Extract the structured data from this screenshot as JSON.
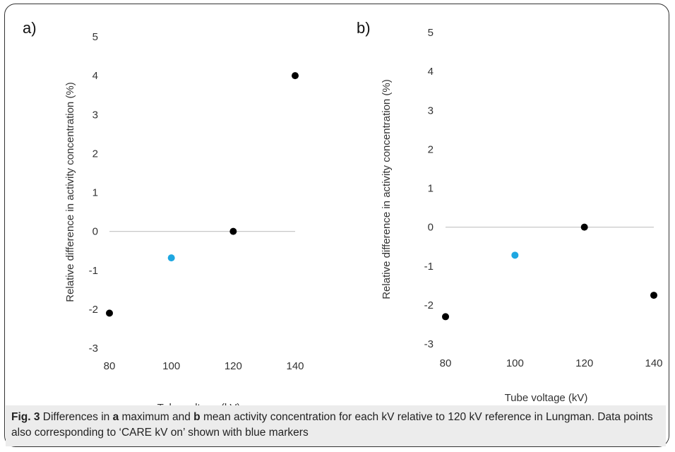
{
  "chart_data": [
    {
      "type": "scatter",
      "panel_label": "a)",
      "xlabel": "Tube voltage (kV)",
      "ylabel": "Relative difference in activity concentration (%)",
      "xlim": [
        80,
        140
      ],
      "ylim": [
        -3,
        5
      ],
      "xticks": [
        "80",
        "100",
        "120",
        "140"
      ],
      "yticks": [
        "-3",
        "-2",
        "-1",
        "0",
        "1",
        "2",
        "3",
        "4",
        "5"
      ],
      "grid": false,
      "points": [
        {
          "x": 80,
          "y": -2.1,
          "color": "#000000"
        },
        {
          "x": 100,
          "y": -0.68,
          "color": "#1ea7e1"
        },
        {
          "x": 120,
          "y": 0.0,
          "color": "#000000"
        },
        {
          "x": 140,
          "y": 4.0,
          "color": "#000000"
        }
      ]
    },
    {
      "type": "scatter",
      "panel_label": "b)",
      "xlabel": "Tube voltage (kV)",
      "ylabel": "Relative difference in activity concentration (%)",
      "xlim": [
        80,
        140
      ],
      "ylim": [
        -3,
        5
      ],
      "xticks": [
        "80",
        "100",
        "120",
        "140"
      ],
      "yticks": [
        "-3",
        "-2",
        "-1",
        "0",
        "1",
        "2",
        "3",
        "4",
        "5"
      ],
      "grid": false,
      "points": [
        {
          "x": 80,
          "y": -2.3,
          "color": "#000000"
        },
        {
          "x": 100,
          "y": -0.72,
          "color": "#1ea7e1"
        },
        {
          "x": 120,
          "y": 0.0,
          "color": "#000000"
        },
        {
          "x": 140,
          "y": -1.75,
          "color": "#000000"
        }
      ]
    }
  ],
  "caption": {
    "fig_label": "Fig. 3",
    "t1": " Differences in ",
    "b_a": "a",
    "t2": " maximum and ",
    "b_b": "b",
    "t3": " mean activity concentration for each kV relative to 120 kV reference in Lungman. Data points also corresponding to ‘CARE kV on’ shown with blue markers"
  }
}
